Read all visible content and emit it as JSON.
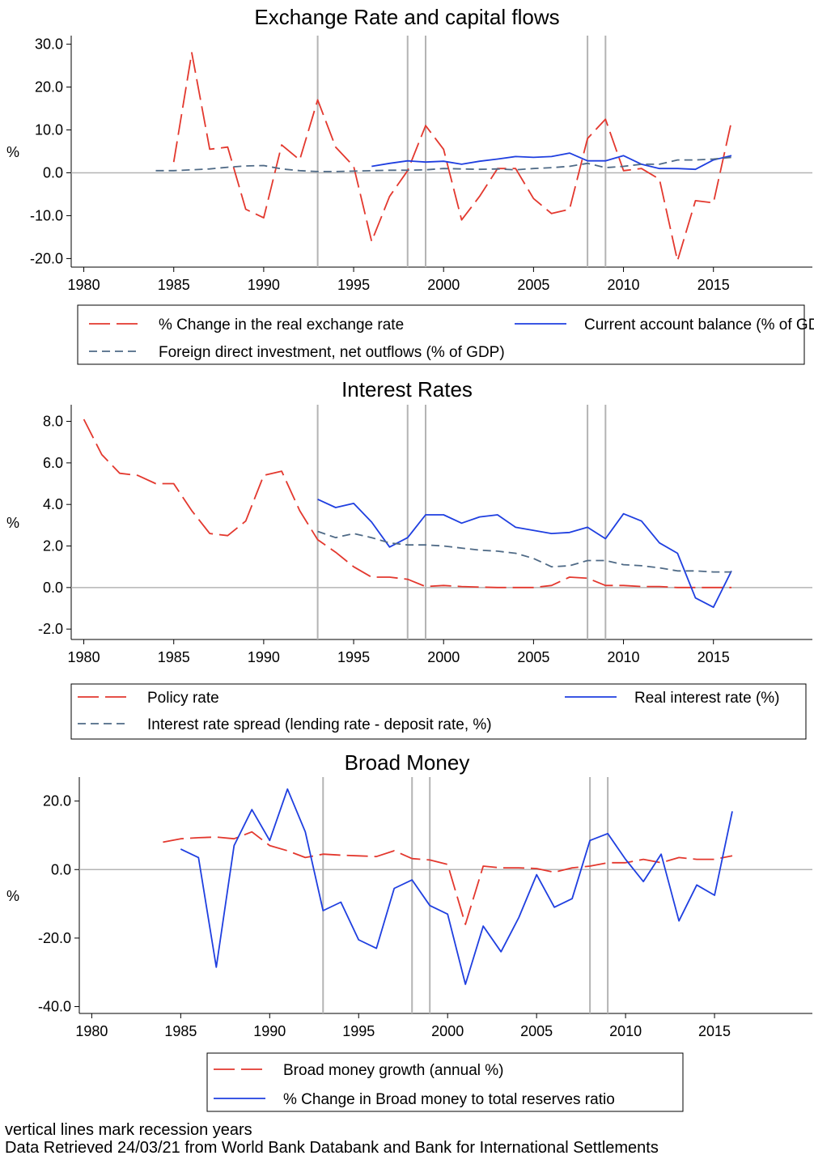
{
  "footer": {
    "line1": "vertical lines mark recession years",
    "line2": "Data Retrieved 24/03/21 from World Bank Databank and Bank for International Settlements"
  },
  "colors": {
    "red": "#e3382e",
    "blue": "#1f3fe0",
    "slate": "#4f6a86",
    "recession": "#b4b4b4"
  },
  "chart_data": [
    {
      "type": "line",
      "title": "Exchange Rate and capital flows",
      "ylabel": "%",
      "xlim": [
        1979.3,
        2020.5
      ],
      "ylim": [
        -22,
        32
      ],
      "xticks": [
        "1980",
        "1985",
        "1990",
        "1995",
        "2000",
        "2005",
        "2010",
        "2015"
      ],
      "yticks": [
        "30.0",
        "20.0",
        "10.0",
        "0.0",
        "-10.0",
        "-20.0"
      ],
      "recession_years": [
        1993,
        1998,
        1999,
        2008,
        2009
      ],
      "legend_placement": "bottom",
      "series": [
        {
          "name": "% Change in the real exchange rate",
          "color": "#e3382e",
          "style": "longdash",
          "x": [
            1985,
            1986,
            1987,
            1988,
            1989,
            1990,
            1991,
            1992,
            1993,
            1994,
            1995,
            1996,
            1997,
            1998,
            1999,
            2000,
            2001,
            2002,
            2003,
            2004,
            2005,
            2006,
            2007,
            2008,
            2009,
            2010,
            2011,
            2012,
            2013,
            2014,
            2015,
            2016
          ],
          "values": [
            2.5,
            28.0,
            5.5,
            6.0,
            -8.5,
            -10.5,
            6.5,
            3.0,
            17.0,
            6.0,
            1.5,
            -16.0,
            -5.5,
            0.5,
            11.0,
            5.5,
            -11.0,
            -5.5,
            1.0,
            1.0,
            -6.0,
            -9.5,
            -8.5,
            8.0,
            12.5,
            0.5,
            1.0,
            -1.5,
            -20.5,
            -6.5,
            -7.0,
            12.0
          ]
        },
        {
          "name": "Current account balance (% of GDP)",
          "color": "#1f3fe0",
          "style": "solid",
          "x": [
            1996,
            1997,
            1998,
            1999,
            2000,
            2001,
            2002,
            2003,
            2004,
            2005,
            2006,
            2007,
            2008,
            2009,
            2010,
            2011,
            2012,
            2013,
            2014,
            2015,
            2016
          ],
          "values": [
            1.5,
            2.2,
            2.8,
            2.5,
            2.7,
            2.0,
            2.7,
            3.2,
            3.8,
            3.6,
            3.8,
            4.6,
            2.8,
            2.8,
            4.0,
            2.0,
            1.0,
            1.0,
            0.8,
            3.0,
            4.0
          ]
        },
        {
          "name": "Foreign direct investment, net outflows (% of GDP)",
          "color": "#4f6a86",
          "style": "dash",
          "x": [
            1984,
            1985,
            1986,
            1987,
            1988,
            1989,
            1990,
            1991,
            1992,
            1993,
            1994,
            1995,
            1996,
            1997,
            1998,
            1999,
            2000,
            2001,
            2002,
            2003,
            2004,
            2005,
            2006,
            2007,
            2008,
            2009,
            2010,
            2011,
            2012,
            2013,
            2014,
            2015,
            2016
          ],
          "values": [
            0.5,
            0.5,
            0.7,
            0.9,
            1.3,
            1.6,
            1.7,
            0.9,
            0.5,
            0.3,
            0.3,
            0.4,
            0.5,
            0.6,
            0.6,
            0.7,
            1.0,
            0.9,
            0.8,
            0.9,
            0.7,
            1.0,
            1.2,
            1.5,
            2.2,
            1.2,
            1.5,
            2.0,
            2.0,
            3.0,
            3.0,
            3.2,
            3.6
          ]
        }
      ]
    },
    {
      "type": "line",
      "title": "Interest Rates",
      "ylabel": "%",
      "xlim": [
        1979.3,
        2020.5
      ],
      "ylim": [
        -2.5,
        8.8
      ],
      "xticks": [
        "1980",
        "1985",
        "1990",
        "1995",
        "2000",
        "2005",
        "2010",
        "2015"
      ],
      "yticks": [
        "8.0",
        "6.0",
        "4.0",
        "2.0",
        "0.0",
        "-2.0"
      ],
      "recession_years": [
        1993,
        1998,
        1999,
        2008,
        2009
      ],
      "legend_placement": "bottom",
      "series": [
        {
          "name": "Policy rate",
          "color": "#e3382e",
          "style": "longdash",
          "x": [
            1980,
            1981,
            1982,
            1983,
            1984,
            1985,
            1986,
            1987,
            1988,
            1989,
            1990,
            1991,
            1992,
            1993,
            1994,
            1995,
            1996,
            1997,
            1998,
            1999,
            2000,
            2001,
            2002,
            2003,
            2004,
            2005,
            2006,
            2007,
            2008,
            2009,
            2010,
            2011,
            2012,
            2013,
            2014,
            2015,
            2016
          ],
          "values": [
            8.1,
            6.4,
            5.5,
            5.4,
            5.0,
            5.0,
            3.7,
            2.6,
            2.5,
            3.2,
            5.4,
            5.6,
            3.7,
            2.3,
            1.7,
            1.0,
            0.5,
            0.5,
            0.4,
            0.05,
            0.1,
            0.05,
            0.02,
            0.0,
            0.0,
            0.0,
            0.1,
            0.5,
            0.45,
            0.1,
            0.1,
            0.05,
            0.05,
            0.0,
            0.0,
            0.0,
            0.0
          ]
        },
        {
          "name": "Real interest rate (%)",
          "color": "#1f3fe0",
          "style": "solid",
          "x": [
            1993,
            1994,
            1995,
            1996,
            1997,
            1998,
            1999,
            2000,
            2001,
            2002,
            2003,
            2004,
            2005,
            2006,
            2007,
            2008,
            2009,
            2010,
            2011,
            2012,
            2013,
            2014,
            2015,
            2016
          ],
          "values": [
            4.25,
            3.85,
            4.05,
            3.15,
            1.95,
            2.4,
            3.5,
            3.5,
            3.1,
            3.4,
            3.5,
            2.9,
            2.75,
            2.6,
            2.65,
            2.9,
            2.35,
            3.55,
            3.2,
            2.15,
            1.65,
            -0.5,
            -0.95,
            0.8
          ]
        },
        {
          "name": "Interest rate spread (lending rate - deposit rate, %)",
          "color": "#4f6a86",
          "style": "dash",
          "x": [
            1993,
            1994,
            1995,
            1996,
            1997,
            1998,
            1999,
            2000,
            2001,
            2002,
            2003,
            2004,
            2005,
            2006,
            2007,
            2008,
            2009,
            2010,
            2011,
            2012,
            2013,
            2014,
            2015,
            2016
          ],
          "values": [
            2.7,
            2.4,
            2.6,
            2.4,
            2.15,
            2.05,
            2.05,
            2.0,
            1.9,
            1.8,
            1.75,
            1.65,
            1.4,
            1.0,
            1.05,
            1.3,
            1.3,
            1.1,
            1.05,
            0.95,
            0.8,
            0.8,
            0.75,
            0.75
          ]
        }
      ]
    },
    {
      "type": "line",
      "title": "Broad Money",
      "ylabel": "%",
      "xlim": [
        1979.3,
        2020.5
      ],
      "ylim": [
        -42,
        27
      ],
      "xticks": [
        "1980",
        "1985",
        "1990",
        "1995",
        "2000",
        "2005",
        "2010",
        "2015"
      ],
      "yticks": [
        "20.0",
        "0.0",
        "-20.0",
        "-40.0"
      ],
      "recession_years": [
        1993,
        1998,
        1999,
        2008,
        2009
      ],
      "legend_placement": "bottom",
      "series": [
        {
          "name": "Broad money growth (annual %)",
          "color": "#e3382e",
          "style": "longdash",
          "x": [
            1984,
            1985,
            1986,
            1987,
            1988,
            1989,
            1990,
            1991,
            1992,
            1993,
            1994,
            1995,
            1996,
            1997,
            1998,
            1999,
            2000,
            2001,
            2002,
            2003,
            2004,
            2005,
            2006,
            2007,
            2008,
            2009,
            2010,
            2011,
            2012,
            2013,
            2014,
            2015,
            2016
          ],
          "values": [
            8.0,
            9.0,
            9.3,
            9.5,
            9.0,
            11.0,
            7.0,
            5.5,
            3.5,
            4.5,
            4.2,
            4.0,
            3.8,
            5.5,
            3.2,
            2.8,
            1.5,
            -16.0,
            1.0,
            0.5,
            0.5,
            0.3,
            -0.8,
            0.5,
            1.0,
            2.0,
            2.0,
            3.0,
            2.0,
            3.5,
            3.0,
            3.0,
            4.0
          ]
        },
        {
          "name": "% Change in Broad money to total reserves ratio",
          "color": "#1f3fe0",
          "style": "solid",
          "x": [
            1985,
            1986,
            1987,
            1988,
            1989,
            1990,
            1991,
            1992,
            1993,
            1994,
            1995,
            1996,
            1997,
            1998,
            1999,
            2000,
            2001,
            2002,
            2003,
            2004,
            2005,
            2006,
            2007,
            2008,
            2009,
            2010,
            2011,
            2012,
            2013,
            2014,
            2015,
            2016
          ],
          "values": [
            6.0,
            3.5,
            -28.5,
            7.0,
            17.5,
            8.5,
            23.5,
            11.0,
            -12.0,
            -9.5,
            -20.5,
            -23.0,
            -5.5,
            -3.0,
            -10.5,
            -13.0,
            -33.5,
            -16.5,
            -24.0,
            -14.0,
            -1.5,
            -11.0,
            -8.5,
            8.5,
            10.5,
            3.0,
            -3.5,
            4.5,
            -15.0,
            -4.5,
            -7.5,
            17.0
          ]
        }
      ]
    }
  ]
}
